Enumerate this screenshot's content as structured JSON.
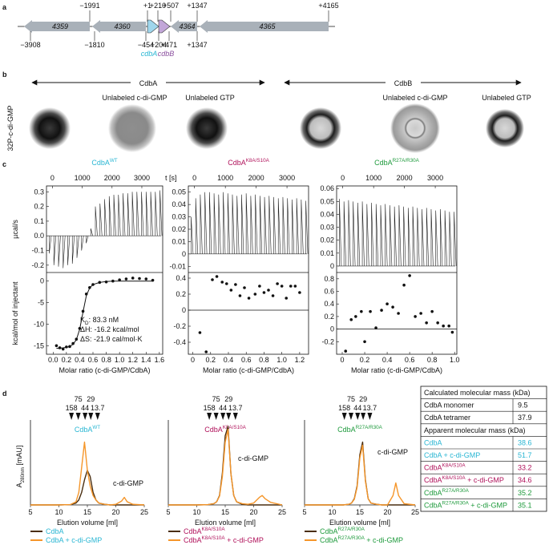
{
  "figure": {
    "panel_a": {
      "letter": "a",
      "genes": [
        "4359",
        "4360",
        "4364",
        "4365"
      ],
      "cdbA": "cdbA",
      "cdbB": "cdbB",
      "top_positions": [
        "−1991",
        "+1",
        "+210",
        "+507",
        "+1347",
        "+4165"
      ],
      "bottom_positions": [
        "−3908",
        "−1810",
        "−454",
        "+204",
        "+471",
        "+1347"
      ]
    },
    "panel_b": {
      "letter": "b",
      "protein_1": "CdbA",
      "protein_2": "CdbB",
      "ylabel": "32P-c-di-GMP",
      "conditions": [
        "Unlabeled c-di-GMP",
        "Unlabeled GTP",
        "Unlabeled c-di-GMP",
        "Unlabeled GTP"
      ]
    },
    "panel_c": {
      "letter": "c",
      "time_label": "t [s]",
      "upper_ylabel": "µcal/s",
      "lower_ylabel": "kcal/mol of injectant",
      "xlabel": "Molar ratio (c-di-GMP/CdbA)",
      "annotations": [
        {
          "base": "K",
          "sub": "D",
          "suffix": ": 83.3 nM"
        },
        {
          "base": "ΔH: -16.2 kcal/mol"
        },
        {
          "base": "ΔS: -21.9 cal/mol·K"
        }
      ],
      "plots": [
        {
          "title": {
            "base": "CdbA",
            "sup": "WT"
          },
          "color": "#29b6d3",
          "time_lim": [
            -200,
            3700
          ],
          "time_ticks": [
            0,
            1000,
            2000,
            3000
          ],
          "raw_ylim": [
            -0.25,
            0.34
          ],
          "raw_yticks": [
            -0.2,
            -0.1,
            {
              "value": 0,
              "label": "0.0"
            },
            0.1,
            0.2,
            0.3
          ],
          "raw_peaks": [
            -0.12,
            -0.2,
            -0.21,
            -0.22,
            -0.2,
            -0.19,
            -0.15,
            -0.1,
            -0.05,
            0.05,
            0.2,
            0.22,
            0.25,
            0.27,
            0.28,
            0.28,
            0.29,
            0.29,
            0.3,
            0.3,
            0.3,
            0.3,
            0.3,
            0.3,
            0.31
          ],
          "xlim": [
            -0.1,
            1.65
          ],
          "xticks": [
            {
              "value": 0,
              "label": "0.0"
            },
            0.2,
            0.4,
            0.6,
            0.8,
            {
              "value": 1,
              "label": "1.0"
            },
            1.2,
            1.4,
            1.6
          ],
          "ylim": [
            -17,
            2
          ],
          "yticks": [
            -15,
            -10,
            -5,
            0
          ],
          "x": [
            0.05,
            0.1,
            0.15,
            0.2,
            0.25,
            0.3,
            0.35,
            0.4,
            0.45,
            0.5,
            0.55,
            0.6,
            0.7,
            0.8,
            0.9,
            1.0,
            1.1,
            1.2,
            1.3,
            1.4,
            1.5
          ],
          "y": [
            -15,
            -15.5,
            -15.8,
            -15.3,
            -15.2,
            -14.5,
            -13.5,
            -11,
            -7,
            -3,
            -1.5,
            -0.8,
            -0.3,
            -0.2,
            0,
            0.3,
            0.5,
            0.7,
            0.6,
            0.5,
            0.2
          ],
          "fit": [
            -15.6,
            -15.6,
            -15.5,
            -15.4,
            -15.2,
            -14.7,
            -13.6,
            -11.2,
            -7.2,
            -3.4,
            -1.6,
            -0.8,
            -0.3,
            -0.1,
            0,
            0,
            0,
            0,
            0,
            0,
            0
          ]
        },
        {
          "title": {
            "base": "CdbA",
            "sup": "K8A/S10A"
          },
          "color": "#b0115a",
          "time_lim": [
            -200,
            3700
          ],
          "time_ticks": [
            0,
            1000,
            2000,
            3000
          ],
          "raw_ylim": [
            -0.015,
            0.055
          ],
          "raw_yticks": [
            -0.01,
            0,
            0.01,
            0.02,
            0.03,
            0.04,
            0.05
          ],
          "raw_peaks": [
            0.03,
            0.045,
            0.048,
            0.05,
            0.05,
            0.049,
            0.048,
            0.05,
            0.049,
            0.048,
            0.047,
            0.048,
            0.049,
            0.047,
            0.048,
            0.047,
            0.046,
            0.047,
            0.046,
            0.045,
            0.046,
            0.045,
            0.044,
            0.045,
            0.044,
            0.043
          ],
          "xlim": [
            -0.05,
            1.3
          ],
          "xticks": [
            0,
            0.2,
            0.4,
            0.6,
            0.8,
            {
              "value": 1,
              "label": "1.0"
            },
            1.2
          ],
          "ylim": [
            -0.55,
            0.47
          ],
          "yticks": [
            -0.4,
            -0.2,
            0,
            0.2,
            0.4
          ],
          "x": [
            0.08,
            0.15,
            0.22,
            0.27,
            0.33,
            0.38,
            0.43,
            0.48,
            0.53,
            0.58,
            0.63,
            0.7,
            0.75,
            0.8,
            0.85,
            0.9,
            0.95,
            1.0,
            1.05,
            1.1,
            1.15,
            1.2
          ],
          "y": [
            -0.28,
            -0.52,
            0.38,
            0.42,
            0.35,
            0.33,
            0.25,
            0.32,
            0.18,
            0.28,
            0.15,
            0.2,
            0.3,
            0.22,
            0.25,
            0.18,
            0.33,
            0.3,
            0.15,
            0.3,
            0.3,
            0.22
          ]
        },
        {
          "title": {
            "base": "CdbA",
            "sup": "R27A/R30A"
          },
          "color": "#1e9a3c",
          "time_lim": [
            -200,
            3700
          ],
          "time_ticks": [
            0,
            1000,
            2000,
            3000
          ],
          "raw_ylim": [
            -0.005,
            0.062
          ],
          "raw_yticks": [
            0,
            0.01,
            0.02,
            0.03,
            0.04,
            0.05,
            0.06
          ],
          "raw_peaks": [
            0.052,
            0.05,
            0.051,
            0.05,
            0.049,
            0.05,
            0.048,
            0.049,
            0.048,
            0.047,
            0.048,
            0.047,
            0.046,
            0.047,
            0.046,
            0.045,
            0.046,
            0.045,
            0.044,
            0.045,
            0.044,
            0.043,
            0.044,
            0.043,
            0.042,
            0.042
          ],
          "xlim": [
            -0.05,
            1.02
          ],
          "xticks": [
            0,
            0.2,
            0.4,
            0.6,
            0.8,
            {
              "value": 1,
              "label": "1.0"
            }
          ],
          "ylim": [
            -0.4,
            0.9
          ],
          "yticks": [
            -0.2,
            0,
            0.2,
            0.4,
            0.6,
            0.8
          ],
          "x": [
            0.03,
            0.08,
            0.12,
            0.17,
            0.2,
            0.25,
            0.3,
            0.35,
            0.4,
            0.45,
            0.5,
            0.55,
            0.6,
            0.65,
            0.7,
            0.75,
            0.8,
            0.85,
            0.9,
            0.95,
            0.98
          ],
          "y": [
            -0.35,
            0.15,
            0.2,
            0.28,
            -0.2,
            0.28,
            0.02,
            0.3,
            0.4,
            0.35,
            0.25,
            0.7,
            0.85,
            0.2,
            0.25,
            0.1,
            0.28,
            0.1,
            0.05,
            0.05,
            -0.05
          ]
        }
      ]
    },
    "panel_d": {
      "letter": "d",
      "ylabel": {
        "base": "A",
        "sub": "280nm",
        "suffix": " [mAU]"
      },
      "xlabel": "Elution volume [ml]",
      "annotation": "c-di-GMP",
      "markers": {
        "kda": [
          158,
          75,
          44,
          29,
          13.7
        ],
        "elution": [
          12.2,
          13.4,
          14.6,
          15.6,
          16.8
        ]
      },
      "xlim": [
        5,
        25
      ],
      "xticks": [
        5,
        10,
        15,
        20,
        25
      ],
      "ylim": [
        0,
        130
      ],
      "x": [
        5,
        10,
        12,
        13,
        13.5,
        14,
        14.5,
        15,
        15.5,
        16,
        16.5,
        17,
        18,
        19,
        20,
        21,
        21.5,
        22,
        23,
        25
      ],
      "plots": [
        {
          "title": {
            "base": "CdbA",
            "sup": "WT"
          },
          "color": "#29b6d3",
          "series": [
            {
              "name": {
                "base": "CdbA"
              },
              "color": "#4a2e10",
              "values": [
                0,
                0,
                0.5,
                3,
                8,
                20,
                40,
                55,
                45,
                20,
                8,
                3,
                1,
                0,
                0,
                0,
                0,
                0,
                0,
                0
              ]
            },
            {
              "name": {
                "base": "CdbA + c-di-GMP"
              },
              "color": "#f5962a",
              "values": [
                0,
                0,
                0.5,
                5,
                20,
                60,
                100,
                55,
                30,
                15,
                8,
                3,
                1,
                0,
                1,
                6,
                12,
                5,
                1,
                0
              ]
            }
          ]
        },
        {
          "title": {
            "base": "CdbA",
            "sup": "K8A/S10A"
          },
          "color": "#b0115a",
          "series": [
            {
              "name": {
                "base": "CdbA",
                "sup": "K8A/S10A"
              },
              "color": "#4a2e10",
              "values": [
                0,
                0,
                0.5,
                2,
                5,
                15,
                50,
                110,
                125,
                50,
                15,
                5,
                1,
                0,
                0,
                0,
                0,
                0,
                0,
                0
              ]
            },
            {
              "name": {
                "base": "CdbA",
                "sup": "K8A/S10A",
                "suffix": " + c-di-GMP"
              },
              "color": "#f5962a",
              "values": [
                0,
                0,
                0.5,
                2,
                5,
                14,
                45,
                100,
                120,
                50,
                15,
                5,
                2,
                1,
                3,
                12,
                15,
                10,
                4,
                0
              ]
            }
          ]
        },
        {
          "title": {
            "base": "CdbA",
            "sup": "R27A/R30A"
          },
          "color": "#1e9a3c",
          "series": [
            {
              "name": {
                "base": "CdbA",
                "sup": "R27A/R30A"
              },
              "color": "#4a2e10",
              "values": [
                0,
                0,
                0,
                1,
                3,
                10,
                30,
                80,
                100,
                40,
                10,
                3,
                1,
                0,
                0,
                0,
                0,
                0,
                0,
                0
              ]
            },
            {
              "name": {
                "base": "CdbA",
                "sup": "R27A/R30A",
                "suffix": " + c-di-GMP"
              },
              "color": "#f5962a",
              "values": [
                0,
                0,
                0,
                1,
                3,
                9,
                28,
                75,
                95,
                38,
                10,
                3,
                1,
                0,
                0,
                15,
                35,
                15,
                2,
                0
              ]
            }
          ]
        }
      ],
      "table": {
        "rows": [
          {
            "header": "Calculated molecular mass (kDa)"
          },
          {
            "label": {
              "base": "CdbA monomer"
            },
            "value": 9.5
          },
          {
            "label": {
              "base": "CdbA tetramer"
            },
            "value": 37.9
          },
          {
            "header": "Apparent molecular mass (kDa)"
          },
          {
            "label": {
              "base": "CdbA"
            },
            "value": 38.6,
            "color": "#29b6d3"
          },
          {
            "label": {
              "base": "CdbA + c-di-GMP"
            },
            "value": 51.7,
            "color": "#29b6d3"
          },
          {
            "label": {
              "base": "CdbA",
              "sup": "K8A/S10A"
            },
            "value": 33.2,
            "color": "#b0115a"
          },
          {
            "label": {
              "base": "CdbA",
              "sup": "K8A/S10A",
              "suffix": " + c-di-GMP"
            },
            "value": 34.6,
            "color": "#b0115a"
          },
          {
            "label": {
              "base": "CdbA",
              "sup": "R27A/R30A"
            },
            "value": 35.2,
            "color": "#1e9a3c"
          },
          {
            "label": {
              "base": "CdbA",
              "sup": "R27A/R30A",
              "suffix": " + c-di-GMP"
            },
            "value": 35.1,
            "color": "#1e9a3c"
          }
        ]
      }
    }
  }
}
